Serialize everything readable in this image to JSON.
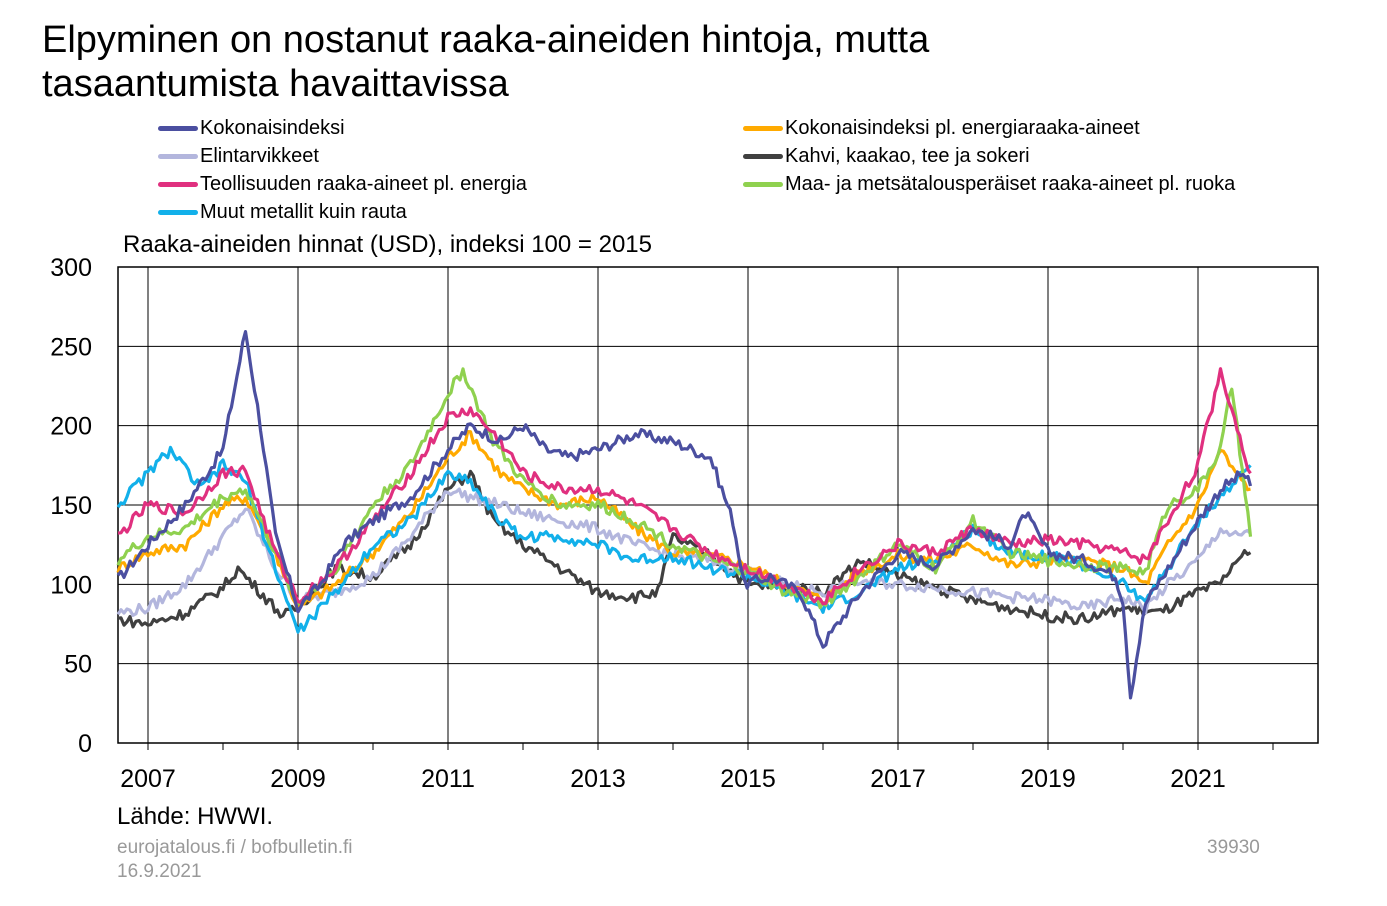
{
  "chart_data": {
    "type": "line",
    "title_lines": [
      "Elpyminen on nostanut raaka-aineiden hintoja, mutta",
      "tasaantumista havaittavissa"
    ],
    "subtitle": "Raaka-aineiden hinnat (USD), indeksi 100 = 2015",
    "xlim": [
      2006.6,
      2022.6
    ],
    "ylim": [
      0,
      300
    ],
    "y_ticks": [
      0,
      50,
      100,
      150,
      200,
      250,
      300
    ],
    "x_tick_labels": [
      "2007",
      "2009",
      "2011",
      "2013",
      "2015",
      "2017",
      "2019",
      "2021"
    ],
    "x_tick_values": [
      2007,
      2009,
      2011,
      2013,
      2015,
      2017,
      2019,
      2021
    ],
    "grid": true,
    "legend_placement": "top",
    "series": [
      {
        "name": "Kokonaisindeksi",
        "color": "#4b4fa0",
        "x": [
          2006.6,
          2007.0,
          2007.5,
          2008.0,
          2008.3,
          2008.5,
          2008.7,
          2009.0,
          2009.3,
          2009.6,
          2010.0,
          2010.5,
          2011.0,
          2011.3,
          2011.7,
          2012.0,
          2012.3,
          2012.6,
          2013.0,
          2013.5,
          2014.0,
          2014.5,
          2014.8,
          2014.95,
          2015.3,
          2015.7,
          2016.0,
          2016.5,
          2017.0,
          2017.5,
          2018.0,
          2018.5,
          2018.7,
          2019.0,
          2019.5,
          2019.9,
          2020.0,
          2020.1,
          2020.3,
          2020.6,
          2021.0,
          2021.3,
          2021.6,
          2021.7
        ],
        "y": [
          103,
          125,
          150,
          185,
          260,
          200,
          130,
          85,
          100,
          125,
          140,
          155,
          185,
          200,
          190,
          200,
          185,
          180,
          185,
          195,
          190,
          180,
          140,
          100,
          105,
          95,
          62,
          95,
          120,
          112,
          135,
          125,
          145,
          120,
          115,
          105,
          90,
          30,
          88,
          110,
          140,
          160,
          170,
          162
        ]
      },
      {
        "name": "Kokonaisindeksi pl. energiaraaka-aineet",
        "color": "#ffaa00",
        "x": [
          2006.6,
          2007.0,
          2007.5,
          2008.0,
          2008.3,
          2008.7,
          2009.0,
          2009.5,
          2010.0,
          2010.5,
          2011.0,
          2011.3,
          2011.7,
          2012.0,
          2012.5,
          2013.0,
          2013.5,
          2014.0,
          2014.5,
          2015.0,
          2015.5,
          2016.0,
          2016.5,
          2017.0,
          2017.5,
          2018.0,
          2018.5,
          2019.0,
          2019.5,
          2020.0,
          2020.3,
          2020.6,
          2021.0,
          2021.3,
          2021.5,
          2021.7
        ],
        "y": [
          110,
          120,
          125,
          150,
          155,
          120,
          85,
          100,
          120,
          145,
          180,
          195,
          170,
          160,
          150,
          155,
          135,
          120,
          118,
          112,
          100,
          90,
          108,
          118,
          115,
          125,
          112,
          115,
          115,
          110,
          100,
          125,
          150,
          185,
          170,
          160
        ]
      },
      {
        "name": "Elintarvikkeet",
        "color": "#b3b6dd",
        "x": [
          2006.6,
          2007.0,
          2007.5,
          2008.0,
          2008.3,
          2008.7,
          2009.0,
          2009.5,
          2010.0,
          2010.5,
          2011.0,
          2011.3,
          2011.7,
          2012.0,
          2012.5,
          2013.0,
          2013.5,
          2014.0,
          2014.5,
          2015.0,
          2015.5,
          2016.0,
          2016.5,
          2017.0,
          2017.5,
          2018.0,
          2018.5,
          2019.0,
          2019.5,
          2020.0,
          2020.3,
          2020.6,
          2021.0,
          2021.3,
          2021.5,
          2021.7
        ],
        "y": [
          82,
          85,
          100,
          130,
          148,
          110,
          90,
          95,
          105,
          130,
          160,
          155,
          150,
          145,
          140,
          135,
          125,
          118,
          115,
          108,
          100,
          95,
          102,
          100,
          98,
          95,
          92,
          90,
          85,
          92,
          85,
          100,
          115,
          135,
          130,
          132
        ]
      },
      {
        "name": "Kahvi, kaakao, tee ja sokeri",
        "color": "#404040",
        "x": [
          2006.6,
          2007.0,
          2007.5,
          2008.0,
          2008.2,
          2008.5,
          2008.8,
          2009.0,
          2009.5,
          2010.0,
          2010.5,
          2011.0,
          2011.3,
          2011.6,
          2012.0,
          2012.5,
          2013.0,
          2013.5,
          2013.8,
          2014.0,
          2014.5,
          2015.0,
          2015.5,
          2016.0,
          2016.5,
          2017.0,
          2017.5,
          2018.0,
          2018.5,
          2019.0,
          2019.5,
          2020.0,
          2020.5,
          2021.0,
          2021.3,
          2021.5,
          2021.7
        ],
        "y": [
          78,
          75,
          82,
          98,
          110,
          95,
          80,
          85,
          110,
          105,
          125,
          160,
          170,
          140,
          125,
          110,
          95,
          92,
          95,
          130,
          118,
          100,
          98,
          95,
          115,
          105,
          98,
          90,
          85,
          80,
          78,
          85,
          82,
          95,
          100,
          115,
          120
        ]
      },
      {
        "name": "Teollisuuden raaka-aineet pl. energia",
        "color": "#e0307f",
        "x": [
          2006.6,
          2007.0,
          2007.5,
          2008.0,
          2008.3,
          2008.7,
          2009.0,
          2009.5,
          2010.0,
          2010.5,
          2011.0,
          2011.3,
          2011.7,
          2012.0,
          2012.5,
          2013.0,
          2013.5,
          2014.0,
          2014.5,
          2015.0,
          2015.5,
          2016.0,
          2016.5,
          2017.0,
          2017.5,
          2018.0,
          2018.5,
          2019.0,
          2019.5,
          2020.0,
          2020.3,
          2020.6,
          2021.0,
          2021.3,
          2021.45,
          2021.7
        ],
        "y": [
          130,
          150,
          145,
          170,
          172,
          120,
          90,
          110,
          140,
          170,
          205,
          210,
          190,
          170,
          160,
          160,
          150,
          135,
          120,
          110,
          100,
          90,
          110,
          125,
          120,
          135,
          125,
          128,
          125,
          120,
          115,
          140,
          175,
          235,
          210,
          170
        ]
      },
      {
        "name": "Maa- ja metsätalousperäiset raaka-aineet pl. ruoka",
        "color": "#8fd14f",
        "x": [
          2006.6,
          2007.0,
          2007.5,
          2008.0,
          2008.3,
          2008.7,
          2009.0,
          2009.5,
          2010.0,
          2010.5,
          2011.0,
          2011.2,
          2011.6,
          2012.0,
          2012.5,
          2013.0,
          2013.5,
          2014.0,
          2014.5,
          2015.0,
          2015.5,
          2016.0,
          2016.5,
          2017.0,
          2017.5,
          2018.0,
          2018.5,
          2019.0,
          2019.5,
          2020.0,
          2020.3,
          2020.6,
          2021.0,
          2021.3,
          2021.45,
          2021.7
        ],
        "y": [
          115,
          130,
          135,
          155,
          160,
          120,
          88,
          110,
          150,
          175,
          220,
          235,
          190,
          165,
          150,
          150,
          140,
          125,
          115,
          108,
          95,
          88,
          105,
          125,
          110,
          140,
          120,
          115,
          112,
          110,
          108,
          150,
          160,
          185,
          225,
          130
        ]
      },
      {
        "name": "Muut metallit kuin rauta",
        "color": "#12b0ea",
        "x": [
          2006.6,
          2007.0,
          2007.3,
          2007.7,
          2008.0,
          2008.3,
          2008.7,
          2009.0,
          2009.5,
          2010.0,
          2010.5,
          2011.0,
          2011.3,
          2011.7,
          2012.0,
          2012.5,
          2013.0,
          2013.5,
          2014.0,
          2014.5,
          2015.0,
          2015.5,
          2016.0,
          2016.5,
          2017.0,
          2017.5,
          2018.0,
          2018.5,
          2019.0,
          2019.5,
          2020.0,
          2020.3,
          2020.6,
          2021.0,
          2021.3,
          2021.5,
          2021.7
        ],
        "y": [
          150,
          170,
          185,
          160,
          175,
          165,
          110,
          70,
          95,
          125,
          140,
          170,
          165,
          140,
          130,
          130,
          125,
          115,
          118,
          110,
          105,
          95,
          85,
          95,
          110,
          115,
          135,
          120,
          118,
          112,
          100,
          90,
          110,
          140,
          155,
          165,
          175
        ]
      }
    ],
    "source_text": "Lähde: HWWI.",
    "footer_left_lines": [
      "eurojatalous.fi / bofbulletin.fi",
      "16.9.2021"
    ],
    "footer_right": "39930"
  }
}
